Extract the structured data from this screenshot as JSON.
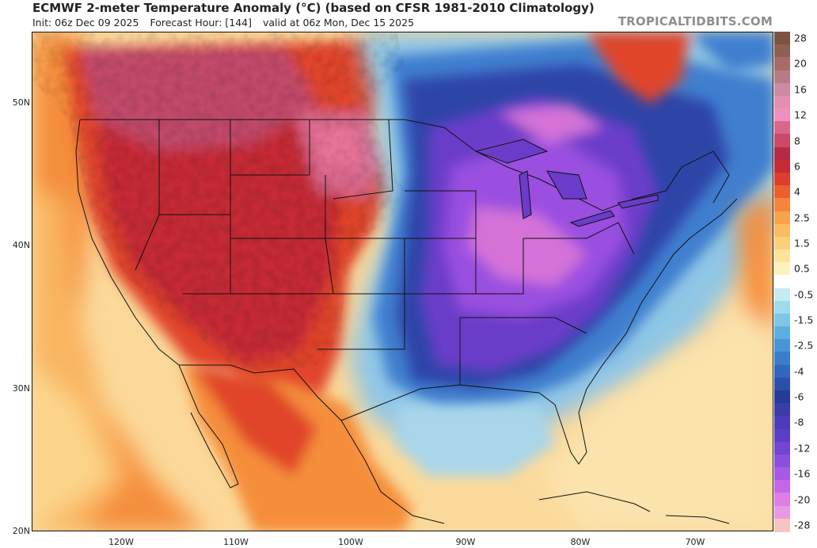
{
  "header": {
    "title": "ECMWF 2-meter Temperature Anomaly (°C) (based on CFSR 1981-2010 Climatology)",
    "init": "Init: 06z Dec 09 2025",
    "forecast_hour": "Forecast Hour: [144]",
    "valid": "valid at 06z Mon, Dec 15 2025",
    "brand": "TROPICALTIDBITS.COM"
  },
  "map": {
    "lat_labels": [
      {
        "label": "50N",
        "lat": 50
      },
      {
        "label": "40N",
        "lat": 40
      },
      {
        "label": "30N",
        "lat": 30
      },
      {
        "label": "20N",
        "lat": 20
      }
    ],
    "lon_labels": [
      {
        "label": "120W",
        "lon": -120
      },
      {
        "label": "110W",
        "lon": -110
      },
      {
        "label": "100W",
        "lon": -100
      },
      {
        "label": "90W",
        "lon": -90
      },
      {
        "label": "80W",
        "lon": -80
      },
      {
        "label": "70W",
        "lon": -70
      }
    ],
    "colors": {
      "warm_dark": "#b31b27",
      "warm_mid": "#e0452a",
      "warm_light": "#f58e3b",
      "warm_pale": "#f7cd85",
      "pink_warm": "#c2496a",
      "pink_bright": "#e9749a",
      "ocean_neutral": "#fbe3ad",
      "cold_light": "#8fc6e6",
      "cold_mid": "#3f7fcf",
      "cold_dark": "#2e45a8",
      "cold_purple": "#6a3cc9",
      "cold_violet": "#9a4fe0",
      "cold_magenta": "#d472d8"
    }
  },
  "colorbar": {
    "levels": [
      {
        "label": "28",
        "color": "#7b5343"
      },
      {
        "label": "",
        "color": "#8e5f53"
      },
      {
        "label": "20",
        "color": "#a46b68"
      },
      {
        "label": "",
        "color": "#b87b86"
      },
      {
        "label": "16",
        "color": "#cc8aa3"
      },
      {
        "label": "",
        "color": "#e38fb4"
      },
      {
        "label": "12",
        "color": "#f08fbf"
      },
      {
        "label": "",
        "color": "#d9678c"
      },
      {
        "label": "8",
        "color": "#c84a68"
      },
      {
        "label": "",
        "color": "#b52a45"
      },
      {
        "label": "6",
        "color": "#c52b34"
      },
      {
        "label": "",
        "color": "#dd3e2d"
      },
      {
        "label": "4",
        "color": "#ef5f2e"
      },
      {
        "label": "",
        "color": "#f7843d"
      },
      {
        "label": "2.5",
        "color": "#f9a24c"
      },
      {
        "label": "",
        "color": "#fbbb60"
      },
      {
        "label": "1.5",
        "color": "#fccf7a"
      },
      {
        "label": "",
        "color": "#fde39a"
      },
      {
        "label": "0.5",
        "color": "#fef2bd"
      },
      {
        "label": "",
        "color": "#ffffff"
      },
      {
        "label": "-0.5",
        "color": "#c6ecf2"
      },
      {
        "label": "",
        "color": "#9edbeb"
      },
      {
        "label": "-1.5",
        "color": "#7ec6e6"
      },
      {
        "label": "",
        "color": "#5eaee0"
      },
      {
        "label": "-2.5",
        "color": "#4a95d8"
      },
      {
        "label": "",
        "color": "#3b7dcd"
      },
      {
        "label": "-4",
        "color": "#3266bf"
      },
      {
        "label": "",
        "color": "#2b4fab"
      },
      {
        "label": "-6",
        "color": "#243c99"
      },
      {
        "label": "",
        "color": "#3a3ca8"
      },
      {
        "label": "-8",
        "color": "#4b3db8"
      },
      {
        "label": "",
        "color": "#5d3ec8"
      },
      {
        "label": "-12",
        "color": "#7444d3"
      },
      {
        "label": "",
        "color": "#8a4fdc"
      },
      {
        "label": "-16",
        "color": "#a65ae3"
      },
      {
        "label": "",
        "color": "#c466e6"
      },
      {
        "label": "-20",
        "color": "#db7ee6"
      },
      {
        "label": "",
        "color": "#e79ae2"
      },
      {
        "label": "-28",
        "color": "#f5c6c1"
      }
    ]
  }
}
